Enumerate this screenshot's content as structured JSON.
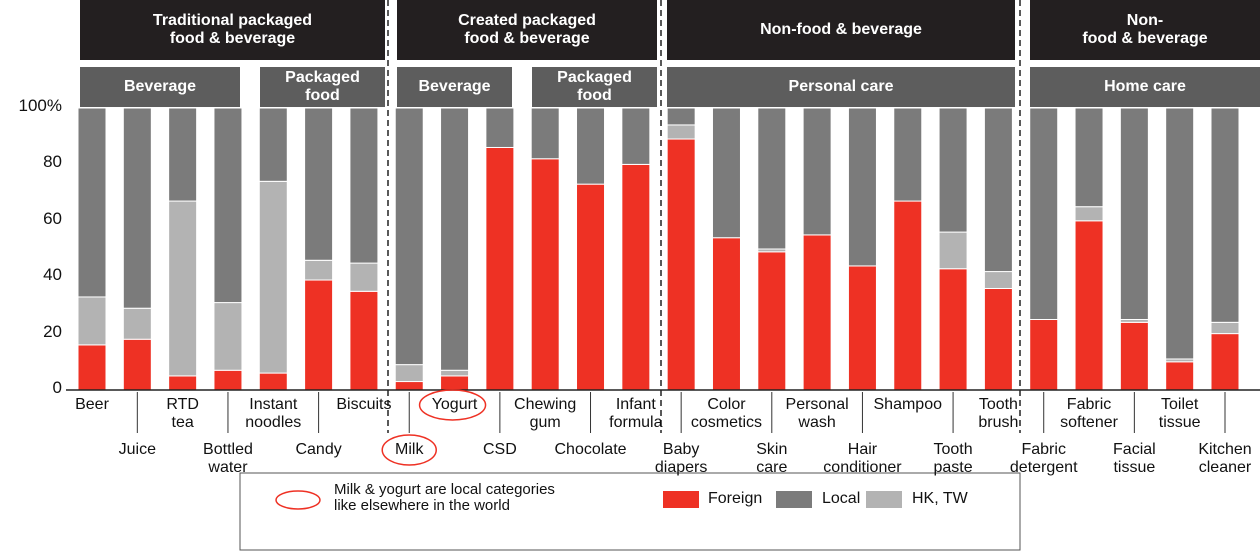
{
  "chart_data": {
    "type": "bar",
    "stacked": true,
    "groups": [
      {
        "title": "Traditional packaged\nfood & beverage",
        "subgroups": [
          "Beverage",
          "Packaged\nfood"
        ]
      },
      {
        "title": "Created packaged\nfood & beverage",
        "subgroups": [
          "Beverage",
          "Packaged\nfood"
        ]
      },
      {
        "title": "Non-food & beverage",
        "subgroups": [
          "Personal care"
        ]
      },
      {
        "title": "Non-\nfood & beverage",
        "subgroups": [
          "Home care"
        ]
      }
    ],
    "categories": [
      "Beer",
      "Juice",
      "RTD\ntea",
      "Bottled\nwater",
      "Instant\nnoodles",
      "Candy",
      "Biscuits",
      "Milk",
      "Yogurt",
      "CSD",
      "Chewing\ngum",
      "Chocolate",
      "Infant\nformula",
      "Baby\ndiapers",
      "Color\ncosmetics",
      "Skin\ncare",
      "Personal\nwash",
      "Hair\nconditioner",
      "Shampoo",
      "Tooth\npaste",
      "Tooth\nbrush",
      "Fabric\ndetergent",
      "Fabric\nsoftener",
      "Facial\ntissue",
      "Toilet\ntissue",
      "Kitchen\ncleaner"
    ],
    "series": [
      {
        "name": "Foreign",
        "color": "#ee3124",
        "values": [
          16,
          18,
          5,
          7,
          6,
          39,
          35,
          3,
          5,
          86,
          82,
          73,
          80,
          89,
          54,
          49,
          55,
          44,
          67,
          43,
          36,
          25,
          60,
          24,
          10,
          20
        ]
      },
      {
        "name": "Local",
        "color": "#7b7b7b",
        "values": [
          67,
          71,
          33,
          69,
          26,
          54,
          55,
          91,
          93,
          14,
          18,
          27,
          20,
          6,
          46,
          50,
          45,
          56,
          33,
          44,
          58,
          75,
          35,
          75,
          89,
          76
        ]
      },
      {
        "name": "HK, TW",
        "color": "#b3b3b3",
        "values": [
          17,
          11,
          62,
          24,
          68,
          7,
          10,
          6,
          2,
          0,
          0,
          0,
          0,
          5,
          0,
          1,
          0,
          0,
          0,
          13,
          6,
          0,
          5,
          1,
          1,
          4
        ]
      }
    ],
    "ylim": [
      0,
      100
    ],
    "yticks": [
      0,
      20,
      40,
      60,
      80,
      {
        "value": 100,
        "label": "100%"
      }
    ],
    "annotation": "Milk & yogurt are local categories\nlike elsewhere in the world"
  }
}
